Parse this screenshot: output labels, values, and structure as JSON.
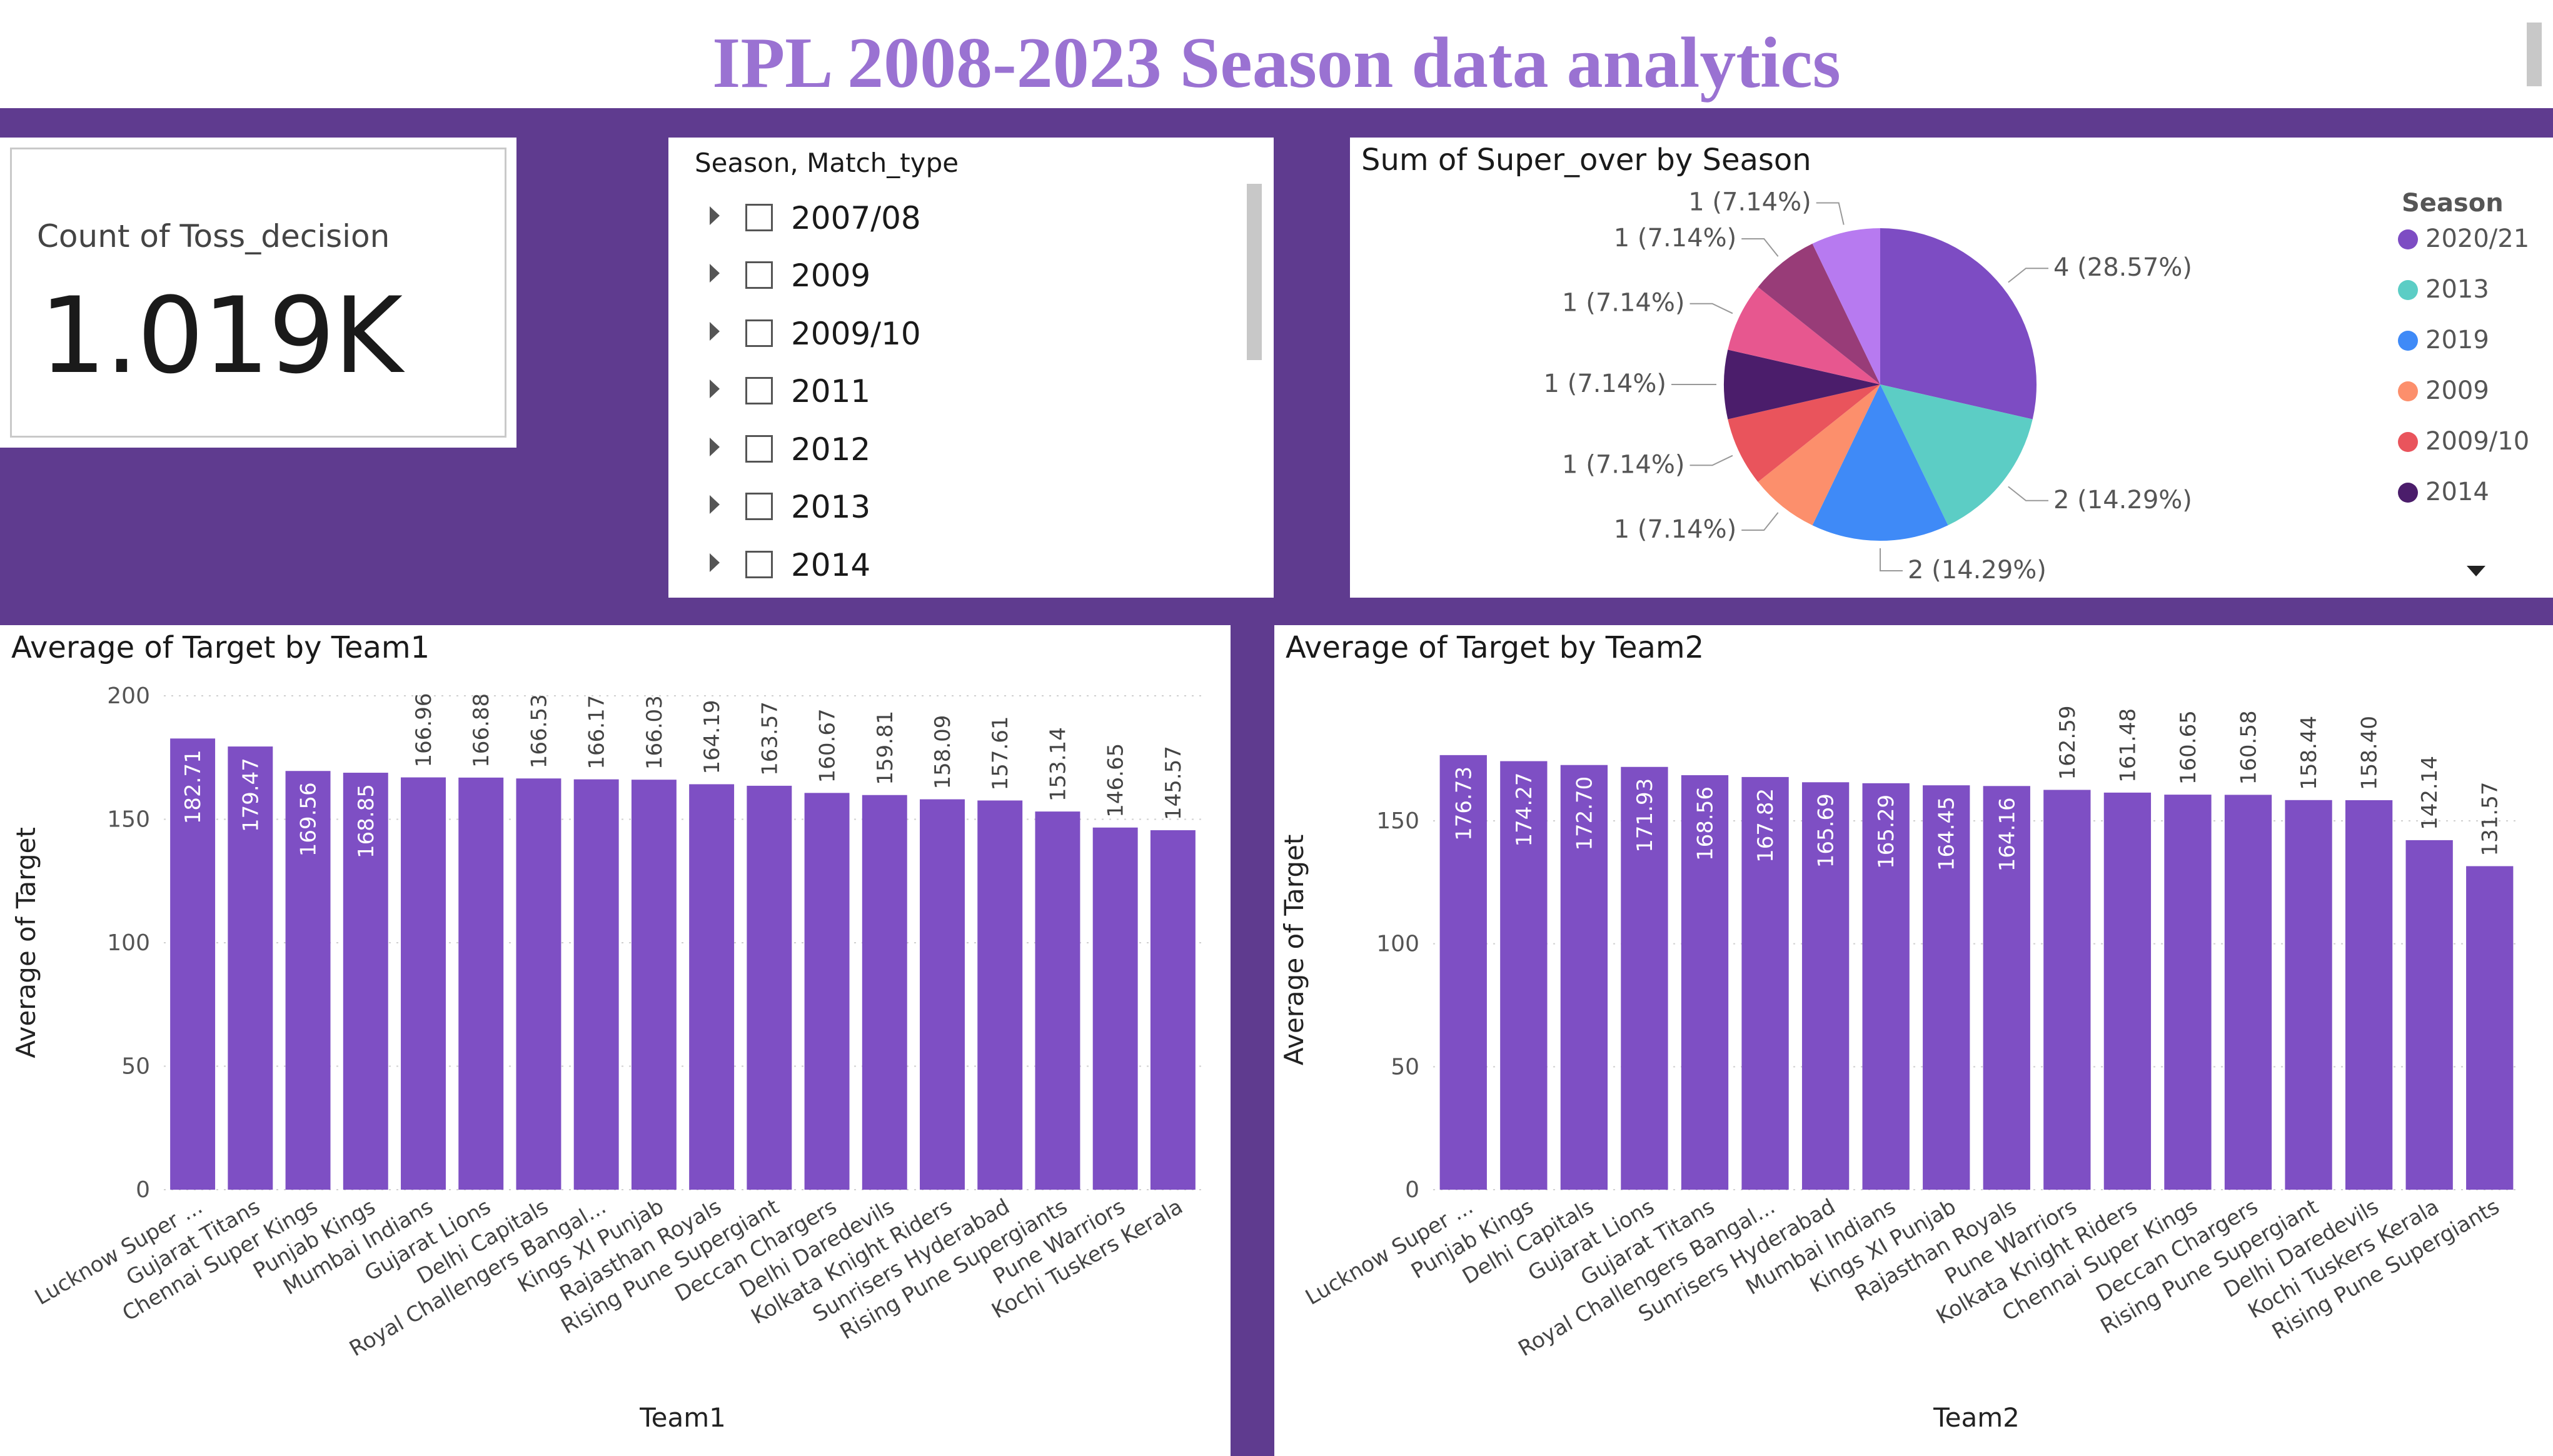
{
  "dashboard_title": "IPL 2008-2023 Season data analytics",
  "kpi": {
    "label": "Count of Toss_decision",
    "value": "1.019K"
  },
  "slicer": {
    "header": "Season, Match_type",
    "items": [
      {
        "label": "2007/08"
      },
      {
        "label": "2009"
      },
      {
        "label": "2009/10"
      },
      {
        "label": "2011"
      },
      {
        "label": "2012"
      },
      {
        "label": "2013"
      },
      {
        "label": "2014"
      }
    ]
  },
  "colors": {
    "band": "#5f3b8f",
    "bar": "#7e4fc4",
    "title": "#9a72d2"
  },
  "chart_data": [
    {
      "type": "pie",
      "title": "Sum of Super_over by Season",
      "legend_title": "Season",
      "legend_position": "right",
      "slices": [
        {
          "label": "2020/21",
          "value": 4,
          "display": "4 (28.57%)",
          "color": "#7d4cc3"
        },
        {
          "label": "2013",
          "value": 2,
          "display": "2 (14.29%)",
          "color": "#5ccdc5"
        },
        {
          "label": "2019",
          "value": 2,
          "display": "2 (14.29%)",
          "color": "#3f8af7"
        },
        {
          "label": "2009",
          "value": 1,
          "display": "1 (7.14%)",
          "color": "#fc8f6c"
        },
        {
          "label": "2009/10",
          "value": 1,
          "display": "1 (7.14%)",
          "color": "#e9545c"
        },
        {
          "label": "2014",
          "value": 1,
          "display": "1 (7.14%)",
          "color": "#4b1d6b"
        },
        {
          "label": "",
          "value": 1,
          "display": "1 (7.14%)",
          "color": "#e7578f"
        },
        {
          "label": "",
          "value": 1,
          "display": "1 (7.14%)",
          "color": "#983c78"
        },
        {
          "label": "",
          "value": 1,
          "display": "1 (7.14%)",
          "color": "#b77af0"
        }
      ],
      "legend_items": [
        "2020/21",
        "2013",
        "2019",
        "2009",
        "2009/10",
        "2014"
      ]
    },
    {
      "type": "bar",
      "title": "Average of Target by Team1",
      "xlabel": "Team1",
      "ylabel": "Average of Target",
      "ylim": [
        0,
        200
      ],
      "yticks": [
        0,
        50,
        100,
        150,
        200
      ],
      "grid": true,
      "categories": [
        "Lucknow Super ...",
        "Gujarat Titans",
        "Chennai Super Kings",
        "Punjab Kings",
        "Mumbai Indians",
        "Gujarat Lions",
        "Delhi Capitals",
        "Royal Challengers Bangal...",
        "Kings XI Punjab",
        "Rajasthan Royals",
        "Rising Pune Supergiant",
        "Deccan Chargers",
        "Delhi Daredevils",
        "Kolkata Knight Riders",
        "Sunrisers Hyderabad",
        "Rising Pune Supergiants",
        "Pune Warriors",
        "Kochi Tuskers Kerala"
      ],
      "values": [
        182.71,
        179.47,
        169.56,
        168.85,
        166.96,
        166.88,
        166.53,
        166.17,
        166.03,
        164.19,
        163.57,
        160.67,
        159.81,
        158.09,
        157.61,
        153.14,
        146.65,
        145.57
      ],
      "value_labels": [
        "182.71",
        "179.47",
        "169.56",
        "168.85",
        "166.96",
        "166.88",
        "166.53",
        "166.17",
        "166.03",
        "164.19",
        "163.57",
        "160.67",
        "159.81",
        "158.09",
        "157.61",
        "153.14",
        "146.65",
        "145.57"
      ],
      "labels_inside_count": 4
    },
    {
      "type": "bar",
      "title": "Average of Target by Team2",
      "xlabel": "Team2",
      "ylabel": "Average of Target",
      "ylim": [
        0,
        195
      ],
      "yticks": [
        0,
        50,
        100,
        150
      ],
      "grid": true,
      "categories": [
        "Lucknow Super ...",
        "Punjab Kings",
        "Delhi Capitals",
        "Gujarat Lions",
        "Gujarat Titans",
        "Royal Challengers Bangal...",
        "Sunrisers Hyderabad",
        "Mumbai Indians",
        "Kings XI Punjab",
        "Rajasthan Royals",
        "Pune Warriors",
        "Kolkata Knight Riders",
        "Chennai Super Kings",
        "Deccan Chargers",
        "Rising Pune Supergiant",
        "Delhi Daredevils",
        "Kochi Tuskers Kerala",
        "Rising Pune Supergiants"
      ],
      "values": [
        176.73,
        174.27,
        172.7,
        171.93,
        168.56,
        167.82,
        165.69,
        165.29,
        164.45,
        164.16,
        162.59,
        161.48,
        160.65,
        160.58,
        158.44,
        158.4,
        142.14,
        131.57
      ],
      "value_labels": [
        "176.73",
        "174.27",
        "172.70",
        "171.93",
        "168.56",
        "167.82",
        "165.69",
        "165.29",
        "164.45",
        "164.16",
        "162.59",
        "161.48",
        "160.65",
        "160.58",
        "158.44",
        "158.40",
        "142.14",
        "131.57"
      ],
      "labels_inside_count": 10
    }
  ]
}
